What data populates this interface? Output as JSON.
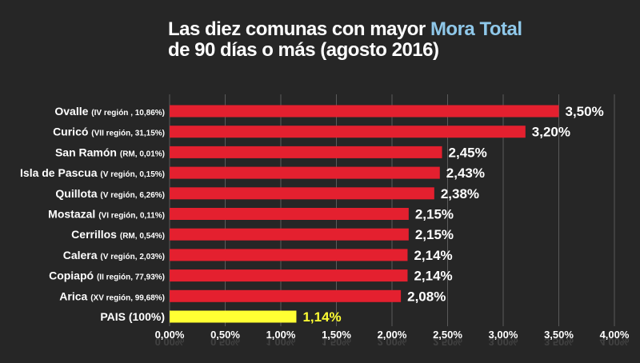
{
  "title": {
    "line1_prefix": "Las diez comunas con mayor ",
    "line1_highlight": "Mora Total",
    "line2": "de 90 días o más (agosto 2016)"
  },
  "colors": {
    "background": "#262626",
    "bar": "#e4202f",
    "highlight_bar": "#ffff33",
    "highlight_text": "#ffff33",
    "title_highlight": "#8fc8ea",
    "grid": "#5a5a5a"
  },
  "chart_data": {
    "type": "bar",
    "orientation": "horizontal",
    "categories": [
      {
        "name": "Ovalle",
        "detail": "(IV región , 10,86%)"
      },
      {
        "name": "Curicó",
        "detail": "(VII región, 31,15%)"
      },
      {
        "name": "San Ramón",
        "detail": "(RM, 0,01%)"
      },
      {
        "name": "Isla de Pascua",
        "detail": "(V región, 0,15%)"
      },
      {
        "name": "Quillota",
        "detail": "(V región, 6,26%)"
      },
      {
        "name": "Mostazal",
        "detail": "(VI región, 0,11%)"
      },
      {
        "name": "Cerrillos",
        "detail": "(RM, 0,54%)"
      },
      {
        "name": "Calera",
        "detail": "(V región, 2,03%)"
      },
      {
        "name": "Copiapó",
        "detail": "(II región, 77,93%)"
      },
      {
        "name": "Arica",
        "detail": "(XV región, 99,68%)"
      },
      {
        "name": "PAIS (100%)",
        "detail": ""
      }
    ],
    "values": [
      3.5,
      3.2,
      2.45,
      2.43,
      2.38,
      2.15,
      2.15,
      2.14,
      2.14,
      2.08,
      1.14
    ],
    "value_labels": [
      "3,50%",
      "3,20%",
      "2,45%",
      "2,43%",
      "2,38%",
      "2,15%",
      "2,15%",
      "2,14%",
      "2,14%",
      "2,08%",
      "1,14%"
    ],
    "highlight_index": 10,
    "xlim": [
      0,
      4.0
    ],
    "xticks": [
      0,
      0.5,
      1.0,
      1.5,
      2.0,
      2.5,
      3.0,
      3.5,
      4.0
    ],
    "xtick_labels": [
      "0,00%",
      "0,50%",
      "1,00%",
      "1,50%",
      "2,00%",
      "2,50%",
      "3,00%",
      "3,50%",
      "4,00%"
    ],
    "grid": true
  }
}
